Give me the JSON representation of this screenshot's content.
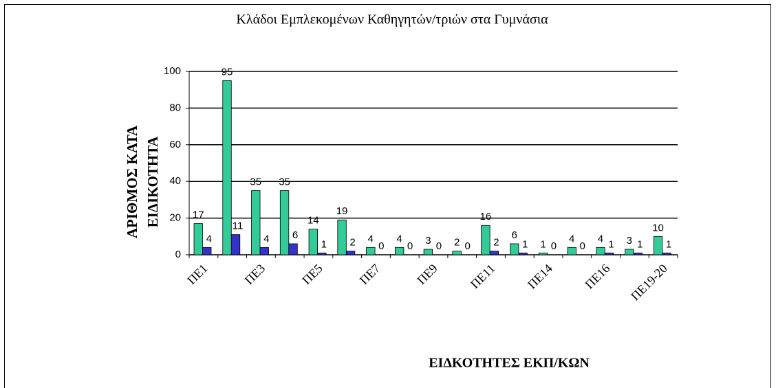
{
  "chart_data": {
    "type": "bar",
    "title": "Κλάδοι Εμπλεκομένων Καθηγητών/τριών στα Γυμνάσια",
    "y_label": [
      "ΑΡΙΘΜΟΣ  ΚΑΤΑ",
      "ΕΙΔΙΚΟΤΗΤΑ"
    ],
    "x_label": "ΕΙΔΚΟΤΗΤΕΣ  ΕΚΠ/ΚΩΝ",
    "categories": [
      "ΠΕ1",
      null,
      "ΠΕ3",
      null,
      "ΠΕ5",
      null,
      "ΠΕ7",
      null,
      "ΠΕ9",
      null,
      "ΠΕ11",
      null,
      "ΠΕ14",
      null,
      "ΠΕ16",
      null,
      "ΠΕ19-20"
    ],
    "series": [
      {
        "color": "#33cc99",
        "values": [
          17,
          95,
          35,
          35,
          14,
          19,
          4,
          4,
          3,
          2,
          16,
          6,
          1,
          4,
          4,
          3,
          10
        ]
      },
      {
        "color": "#3333cc",
        "values": [
          4,
          11,
          4,
          6,
          1,
          2,
          0,
          0,
          0,
          0,
          2,
          1,
          0,
          0,
          1,
          1,
          1
        ]
      }
    ],
    "ylim": [
      0,
      100
    ],
    "yticks": [
      0,
      20,
      40,
      60,
      80,
      100
    ],
    "grid": true
  }
}
